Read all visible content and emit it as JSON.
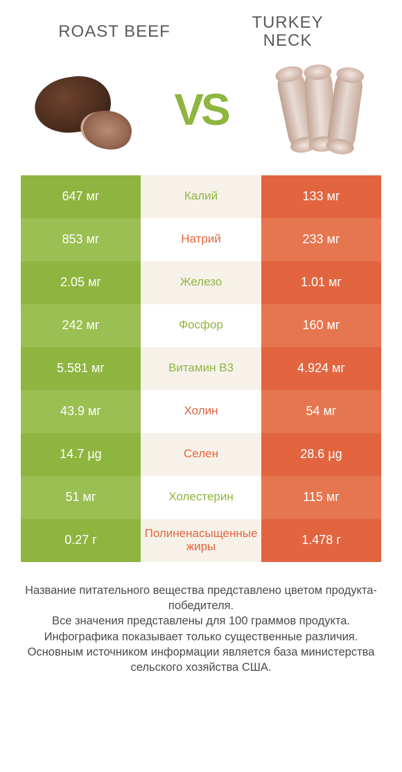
{
  "header": {
    "left_title": "ROAST BEEF",
    "right_title_line1": "TURKEY",
    "right_title_line2": "NECK",
    "vs": "VS"
  },
  "colors": {
    "left_food": "#8eb53f",
    "right_food": "#e2653f",
    "row_left": [
      "#8eb53f",
      "#9abf52",
      "#8eb53f",
      "#9abf52",
      "#8eb53f",
      "#9abf52",
      "#8eb53f",
      "#9abf52",
      "#8eb53f"
    ],
    "row_right": [
      "#e2653f",
      "#e57650",
      "#e2653f",
      "#e57650",
      "#e2653f",
      "#e57650",
      "#e2653f",
      "#e57650",
      "#e2653f"
    ],
    "mid_bg": [
      "#f7f2e9",
      "#ffffff",
      "#f7f2e9",
      "#ffffff",
      "#f7f2e9",
      "#ffffff",
      "#f7f2e9",
      "#ffffff",
      "#f7f2e9"
    ],
    "mid_text": [
      "#8eb53f",
      "#e2653f",
      "#8eb53f",
      "#8eb53f",
      "#8eb53f",
      "#e2653f",
      "#e2653f",
      "#8eb53f",
      "#e2653f"
    ]
  },
  "rows": [
    {
      "left": "647 мг",
      "name": "Калий",
      "right": "133 мг"
    },
    {
      "left": "853 мг",
      "name": "Натрий",
      "right": "233 мг"
    },
    {
      "left": "2.05 мг",
      "name": "Железо",
      "right": "1.01 мг"
    },
    {
      "left": "242 мг",
      "name": "Фосфор",
      "right": "160 мг"
    },
    {
      "left": "5.581 мг",
      "name": "Витамин B3",
      "right": "4.924 мг"
    },
    {
      "left": "43.9 мг",
      "name": "Холин",
      "right": "54 мг"
    },
    {
      "left": "14.7 µg",
      "name": "Селен",
      "right": "28.6 µg"
    },
    {
      "left": "51 мг",
      "name": "Холестерин",
      "right": "115 мг"
    },
    {
      "left": "0.27 г",
      "name": "Полиненасыщенные жиры",
      "right": "1.478 г"
    }
  ],
  "footer": {
    "l1": "Название питательного вещества представлено цветом продукта-победителя.",
    "l2": "Все значения представлены для 100 граммов продукта.",
    "l3": "Инфографика показывает только существенные различия.",
    "l4": "Основным источником информации является база министерства сельского хозяйства США."
  }
}
